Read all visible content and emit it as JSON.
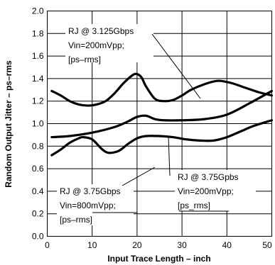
{
  "chart_data": {
    "type": "line",
    "title": "",
    "xlabel": "Input Trace Length – inch",
    "ylabel": "Random Output Jitter – ps–rms",
    "xlim": [
      0,
      50
    ],
    "ylim": [
      0,
      2.0
    ],
    "x_ticks": [
      "0",
      "10",
      "20",
      "30",
      "40",
      "50"
    ],
    "y_ticks": [
      "0.0",
      "0.2",
      "0.4",
      "0.6",
      "0.8",
      "1.0",
      "1.2",
      "1.4",
      "1.6",
      "1.8",
      "2.0"
    ],
    "grid": true,
    "series": [
      {
        "x": [
          1,
          3,
          5,
          7,
          9,
          11,
          13,
          15,
          17,
          19,
          20,
          21,
          22,
          24,
          26,
          28,
          30,
          32,
          35,
          38,
          41,
          44,
          47,
          50
        ],
        "y": [
          1.29,
          1.25,
          1.2,
          1.17,
          1.16,
          1.17,
          1.2,
          1.27,
          1.36,
          1.43,
          1.44,
          1.41,
          1.33,
          1.22,
          1.2,
          1.21,
          1.25,
          1.3,
          1.35,
          1.38,
          1.36,
          1.32,
          1.28,
          1.25
        ]
      },
      {
        "x": [
          1,
          5,
          10,
          15,
          18,
          20,
          22,
          24,
          26,
          30,
          35,
          40,
          45,
          50
        ],
        "y": [
          0.88,
          0.89,
          0.92,
          0.97,
          1.02,
          1.06,
          1.07,
          1.04,
          1.03,
          1.03,
          1.04,
          1.08,
          1.18,
          1.29
        ]
      },
      {
        "x": [
          1,
          3,
          5,
          7,
          8,
          10,
          12,
          13,
          14,
          16,
          18,
          20,
          22,
          25,
          28,
          31,
          34,
          37,
          40,
          43,
          46,
          50
        ],
        "y": [
          0.72,
          0.77,
          0.83,
          0.87,
          0.88,
          0.86,
          0.78,
          0.75,
          0.74,
          0.76,
          0.82,
          0.87,
          0.89,
          0.89,
          0.88,
          0.86,
          0.85,
          0.85,
          0.88,
          0.93,
          0.98,
          1.03
        ]
      }
    ],
    "annotations": [
      {
        "lines": [
          "RJ @ 3.125Gbps",
          "Vin=200mVpp;",
          "[ps–rms]"
        ],
        "anchor": [
          4.5,
          1.66
        ]
      },
      {
        "lines": [
          "RJ @ 3.75Gpbs",
          "Vin=200mVpp;",
          "[ps_rms]"
        ],
        "anchor": [
          28.2,
          0.6
        ]
      },
      {
        "lines": [
          "RJ @ 3.75Gbps",
          "Vin=800mVpp;",
          "[ps–rms]"
        ],
        "anchor": [
          2.7,
          0.48
        ]
      }
    ]
  }
}
